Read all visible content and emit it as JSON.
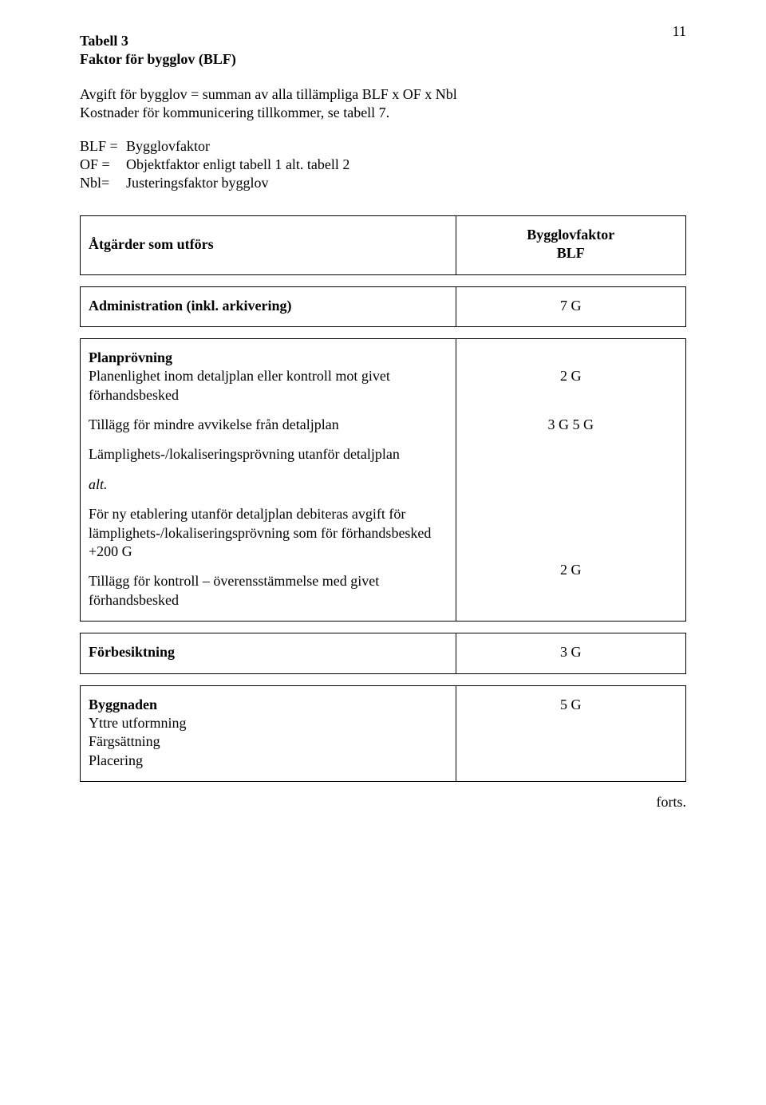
{
  "page_number": "11",
  "heading": {
    "line1": "Tabell 3",
    "line2": "Faktor för bygglov (BLF)"
  },
  "intro": {
    "line1": "Avgift för bygglov = summan av alla tillämpliga BLF x OF x Nbl",
    "line2": "Kostnader för kommunicering tillkommer, se tabell 7."
  },
  "definitions": [
    {
      "label": "BLF =",
      "value": "Bygglovfaktor"
    },
    {
      "label": "OF =",
      "value": "Objektfaktor enligt tabell 1 alt. tabell 2"
    },
    {
      "label": "Nbl=",
      "value": "Justeringsfaktor bygglov"
    }
  ],
  "table_header": {
    "left": "Åtgärder som utförs",
    "right_line1": "Bygglovfaktor",
    "right_line2": "BLF"
  },
  "row_admin": {
    "label": "Administration (inkl. arkivering)",
    "value": "7 G"
  },
  "row_plan": {
    "title": "Planprövning",
    "item1_label": "Planenlighet inom detaljplan eller kontroll mot givet förhandsbesked",
    "item1_value": "2 G",
    "item2_label": "Tillägg för mindre avvikelse från detaljplan",
    "item2_value": "3 G",
    "item3_label": "Lämplighets-/lokaliseringsprövning utanför detaljplan",
    "item3_value": "5 G",
    "alt_label": "alt.",
    "note": "För ny etablering utanför detaljplan debiteras avgift för lämplighets-/lokaliseringsprövning som för förhandsbesked  +200 G",
    "item4_label": "Tillägg för kontroll – överensstämmelse med givet förhandsbesked",
    "item4_value": "2 G"
  },
  "row_forbesikt": {
    "label": "Förbesiktning",
    "value": "3 G"
  },
  "row_byggnaden": {
    "title": "Byggnaden",
    "sub1": "Yttre utformning",
    "sub2": "Färgsättning",
    "sub3": "Placering",
    "value": "5 G"
  },
  "forts": "forts."
}
